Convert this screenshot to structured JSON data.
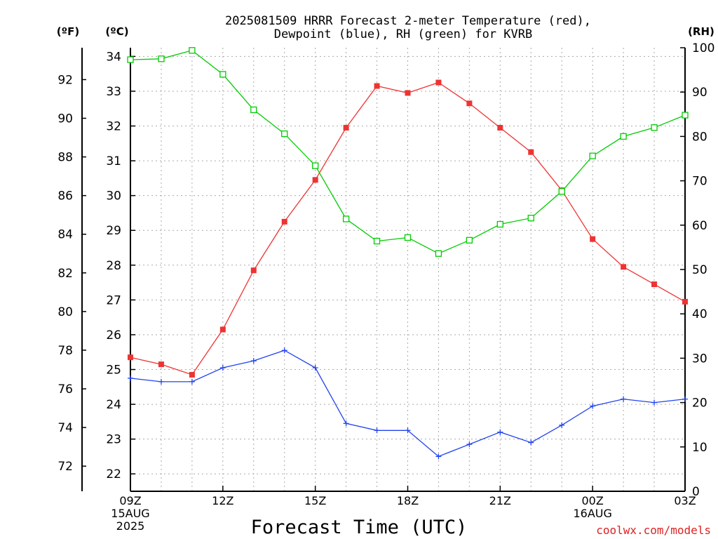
{
  "title_line1": "2025081509 HRRR Forecast 2-meter Temperature (red),",
  "title_line2": "Dewpoint (blue), RH (green) for KVRB",
  "unit_f": "(ºF)",
  "unit_c": "(ºC)",
  "unit_rh": "(RH)",
  "credit": "coolwx.com/models",
  "colors": {
    "temperature": "#ee3333",
    "dewpoint": "#2244ee",
    "rh": "#00cc00",
    "grid": "#aaaaaa",
    "credit": "#dd2222"
  },
  "chart_data": {
    "type": "line",
    "title": "2025081509 HRRR Forecast 2-meter Temperature (red), Dewpoint (blue), RH (green) for KVRB",
    "xlabel": "Forecast Time (UTC)",
    "x_hours": [
      9,
      10,
      11,
      12,
      13,
      14,
      15,
      16,
      17,
      18,
      19,
      20,
      21,
      22,
      23,
      24,
      25,
      26,
      27
    ],
    "x_range": [
      9,
      27
    ],
    "x_ticks": [
      {
        "hour": 9,
        "lines": [
          "09Z",
          "15AUG",
          "2025"
        ]
      },
      {
        "hour": 12,
        "lines": [
          "12Z"
        ]
      },
      {
        "hour": 15,
        "lines": [
          "15Z"
        ]
      },
      {
        "hour": 18,
        "lines": [
          "18Z"
        ]
      },
      {
        "hour": 21,
        "lines": [
          "21Z"
        ]
      },
      {
        "hour": 24,
        "lines": [
          "00Z",
          "16AUG"
        ]
      },
      {
        "hour": 27,
        "lines": [
          "03Z"
        ]
      }
    ],
    "y_celsius": {
      "label": "(ºC)",
      "range": [
        21.5,
        34.25
      ],
      "ticks": [
        22,
        23,
        24,
        25,
        26,
        27,
        28,
        29,
        30,
        31,
        32,
        33,
        34
      ]
    },
    "y_fahrenheit": {
      "label": "(ºF)",
      "ticks": [
        72,
        74,
        76,
        78,
        80,
        82,
        84,
        86,
        88,
        90,
        92
      ]
    },
    "y_rh": {
      "label": "(RH)",
      "range": [
        0,
        100
      ],
      "ticks": [
        0,
        10,
        20,
        30,
        40,
        50,
        60,
        70,
        80,
        90,
        100
      ]
    },
    "grid": true,
    "series": [
      {
        "name": "Temperature",
        "axis": "celsius",
        "marker": "filled-square",
        "values": [
          25.35,
          25.15,
          24.85,
          26.15,
          27.85,
          29.25,
          30.45,
          31.95,
          33.15,
          32.95,
          33.25,
          32.65,
          31.95,
          31.25,
          30.15,
          28.75,
          27.95,
          27.45,
          26.95
        ]
      },
      {
        "name": "Dewpoint",
        "axis": "celsius",
        "marker": "plus",
        "values": [
          24.75,
          24.65,
          24.65,
          25.05,
          25.25,
          25.55,
          25.05,
          23.45,
          23.25,
          23.25,
          22.5,
          22.85,
          23.2,
          22.9,
          23.4,
          23.95,
          24.15,
          24.05,
          24.15
        ]
      },
      {
        "name": "RH",
        "axis": "rh",
        "marker": "open-square",
        "values": [
          97.3,
          97.5,
          99.4,
          94.0,
          86.0,
          80.6,
          73.4,
          61.4,
          56.4,
          57.2,
          53.6,
          56.6,
          60.2,
          61.6,
          67.6,
          75.6,
          80.0,
          82.0,
          84.8
        ]
      }
    ]
  }
}
